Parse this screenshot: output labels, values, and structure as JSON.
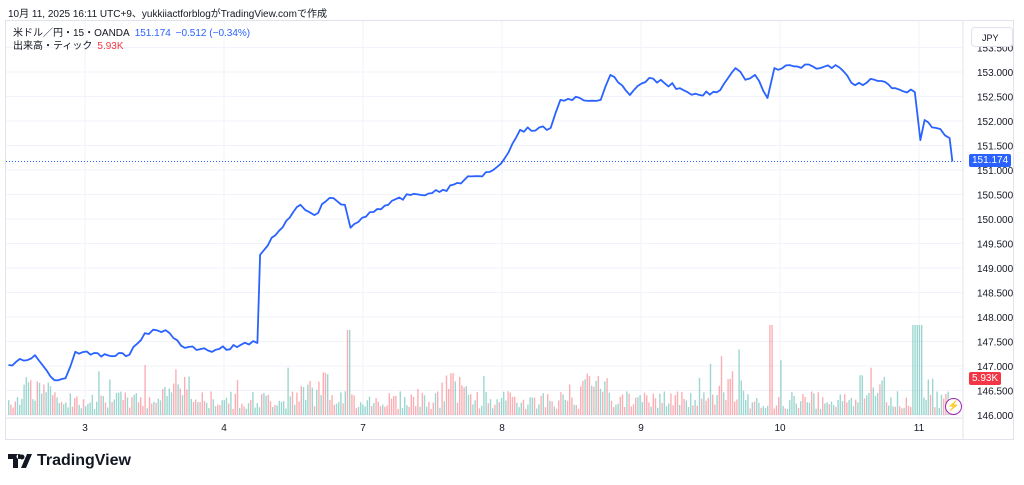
{
  "caption": "10月 11, 2025 16:11 UTC+9、yukkiiactforblogがTradingView.comで作成",
  "legend": {
    "symbol": "米ドル／円・15・OANDA",
    "price": "151.174",
    "change": "−0.512 (−0.34%)",
    "volume_label": "出来高・ティック",
    "volume_value": "5.93K"
  },
  "currency_button": "JPY",
  "brand": "TradingView",
  "colors": {
    "line": "#2962ff",
    "up": "#26a69a",
    "down": "#f23645"
  },
  "chart_data": {
    "type": "line",
    "title": "USD/JPY 15 OANDA",
    "x_unit": "days since Oct 3 00:00",
    "x_ticks": [
      {
        "t": 0,
        "label": "3"
      },
      {
        "t": 1,
        "label": "4"
      },
      {
        "t": 2,
        "label": "7"
      },
      {
        "t": 3,
        "label": "8"
      },
      {
        "t": 4,
        "label": "9"
      },
      {
        "t": 5,
        "label": "10"
      },
      {
        "t": 6,
        "label": "11"
      }
    ],
    "y_ticks": [
      "153.500",
      "153.000",
      "152.500",
      "152.000",
      "151.500",
      "151.000",
      "150.500",
      "150.000",
      "149.500",
      "149.000",
      "148.500",
      "148.000",
      "147.500",
      "147.000",
      "146.500",
      "146.000"
    ],
    "ylim": [
      146.0,
      153.5
    ],
    "last_price": 151.174,
    "series": [
      {
        "name": "USD/JPY",
        "points": [
          [
            -0.55,
            147.02
          ],
          [
            -0.36,
            147.22
          ],
          [
            -0.22,
            146.71
          ],
          [
            -0.14,
            146.75
          ],
          [
            -0.07,
            147.29
          ],
          [
            0.04,
            147.23
          ],
          [
            0.32,
            147.23
          ],
          [
            0.43,
            147.67
          ],
          [
            0.58,
            147.73
          ],
          [
            0.72,
            147.37
          ],
          [
            0.94,
            147.33
          ],
          [
            1.12,
            147.43
          ],
          [
            1.24,
            147.47
          ],
          [
            1.26,
            149.27
          ],
          [
            1.37,
            149.67
          ],
          [
            1.55,
            150.29
          ],
          [
            1.65,
            150.08
          ],
          [
            1.76,
            150.43
          ],
          [
            1.87,
            150.29
          ],
          [
            1.91,
            149.82
          ],
          [
            2.05,
            150.14
          ],
          [
            2.34,
            150.49
          ],
          [
            2.55,
            150.55
          ],
          [
            2.73,
            150.8
          ],
          [
            2.91,
            150.96
          ],
          [
            3.02,
            151.24
          ],
          [
            3.13,
            151.82
          ],
          [
            3.35,
            151.86
          ],
          [
            3.42,
            152.43
          ],
          [
            3.56,
            152.47
          ],
          [
            3.71,
            152.43
          ],
          [
            3.78,
            152.94
          ],
          [
            3.92,
            152.53
          ],
          [
            4.06,
            152.88
          ],
          [
            4.28,
            152.67
          ],
          [
            4.42,
            152.53
          ],
          [
            4.57,
            152.63
          ],
          [
            4.68,
            153.08
          ],
          [
            4.75,
            152.84
          ],
          [
            4.82,
            152.94
          ],
          [
            4.91,
            152.47
          ],
          [
            4.96,
            153.08
          ],
          [
            5.07,
            153.14
          ],
          [
            5.29,
            153.08
          ],
          [
            5.4,
            153.14
          ],
          [
            5.54,
            152.73
          ],
          [
            5.68,
            152.84
          ],
          [
            5.83,
            152.67
          ],
          [
            5.97,
            152.59
          ],
          [
            6.01,
            151.61
          ],
          [
            6.04,
            152.02
          ],
          [
            6.12,
            151.86
          ],
          [
            6.22,
            151.65
          ],
          [
            6.24,
            151.174
          ]
        ]
      }
    ],
    "volume": {
      "last": "5.93K"
    }
  }
}
